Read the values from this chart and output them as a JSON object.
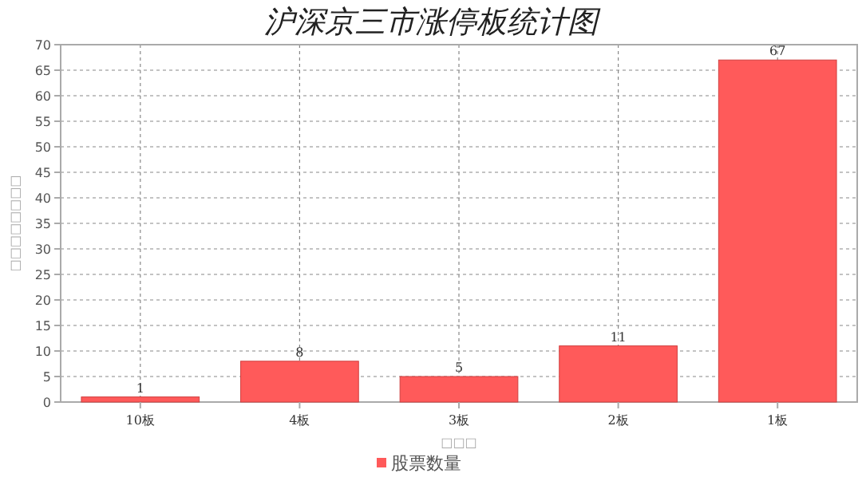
{
  "chart_data": {
    "type": "bar",
    "title": "沪深京三市涨停板统计图",
    "xlabel": "□□□",
    "ylabel": "□□□□□□□□",
    "categories": [
      "10板",
      "4板",
      "3板",
      "2板",
      "1板"
    ],
    "series": [
      {
        "name": "股票数量",
        "color": "#ff5a5a",
        "values": [
          1,
          8,
          5,
          11,
          67
        ]
      }
    ],
    "ylim": [
      0,
      70
    ],
    "yticks": [
      0,
      5,
      10,
      15,
      20,
      25,
      30,
      35,
      40,
      45,
      50,
      55,
      60,
      65,
      70
    ],
    "grid": true,
    "legend": "bottom",
    "data_labels": true
  }
}
